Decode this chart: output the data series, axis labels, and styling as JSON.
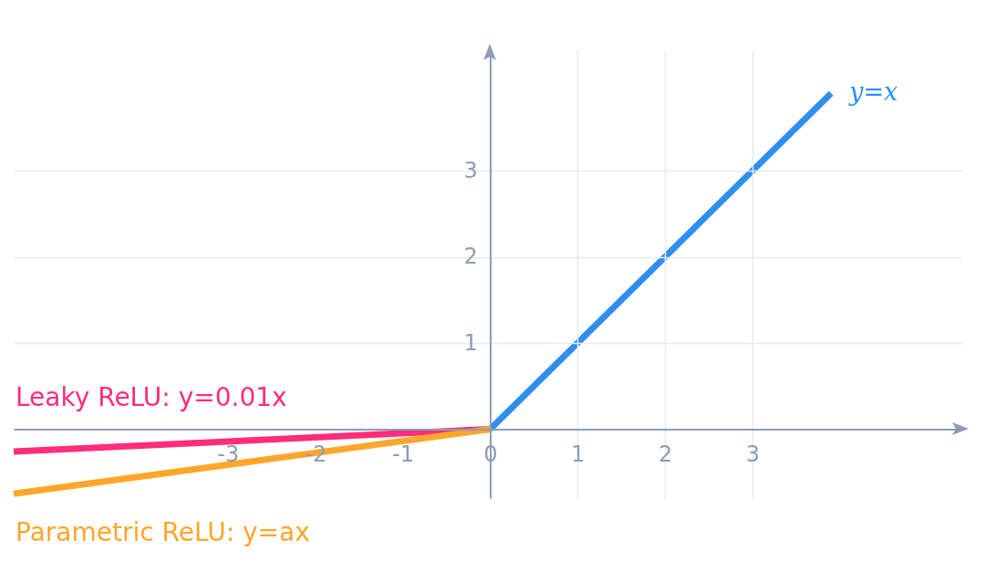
{
  "chart_data": {
    "type": "line",
    "xlim": [
      -5.45,
      5.4
    ],
    "ylim": [
      -0.8,
      4.4
    ],
    "xticks": [
      -3,
      -2,
      -1,
      0,
      1,
      2,
      3
    ],
    "yticks": [
      1,
      2,
      3
    ],
    "grid": true,
    "series": [
      {
        "name": "y=x",
        "color": "#2f8ff0",
        "x": [
          0,
          3.9
        ],
        "values": [
          0,
          3.9
        ]
      },
      {
        "name": "Leaky ReLU: y=0.01x",
        "color": "#ff2d7a",
        "x": [
          -5.45,
          0
        ],
        "values": [
          -0.26,
          0
        ]
      },
      {
        "name": "Parametric ReLU: y=ax",
        "color": "#ffa62b",
        "x": [
          -5.45,
          0
        ],
        "values": [
          -0.75,
          0
        ]
      }
    ]
  }
}
